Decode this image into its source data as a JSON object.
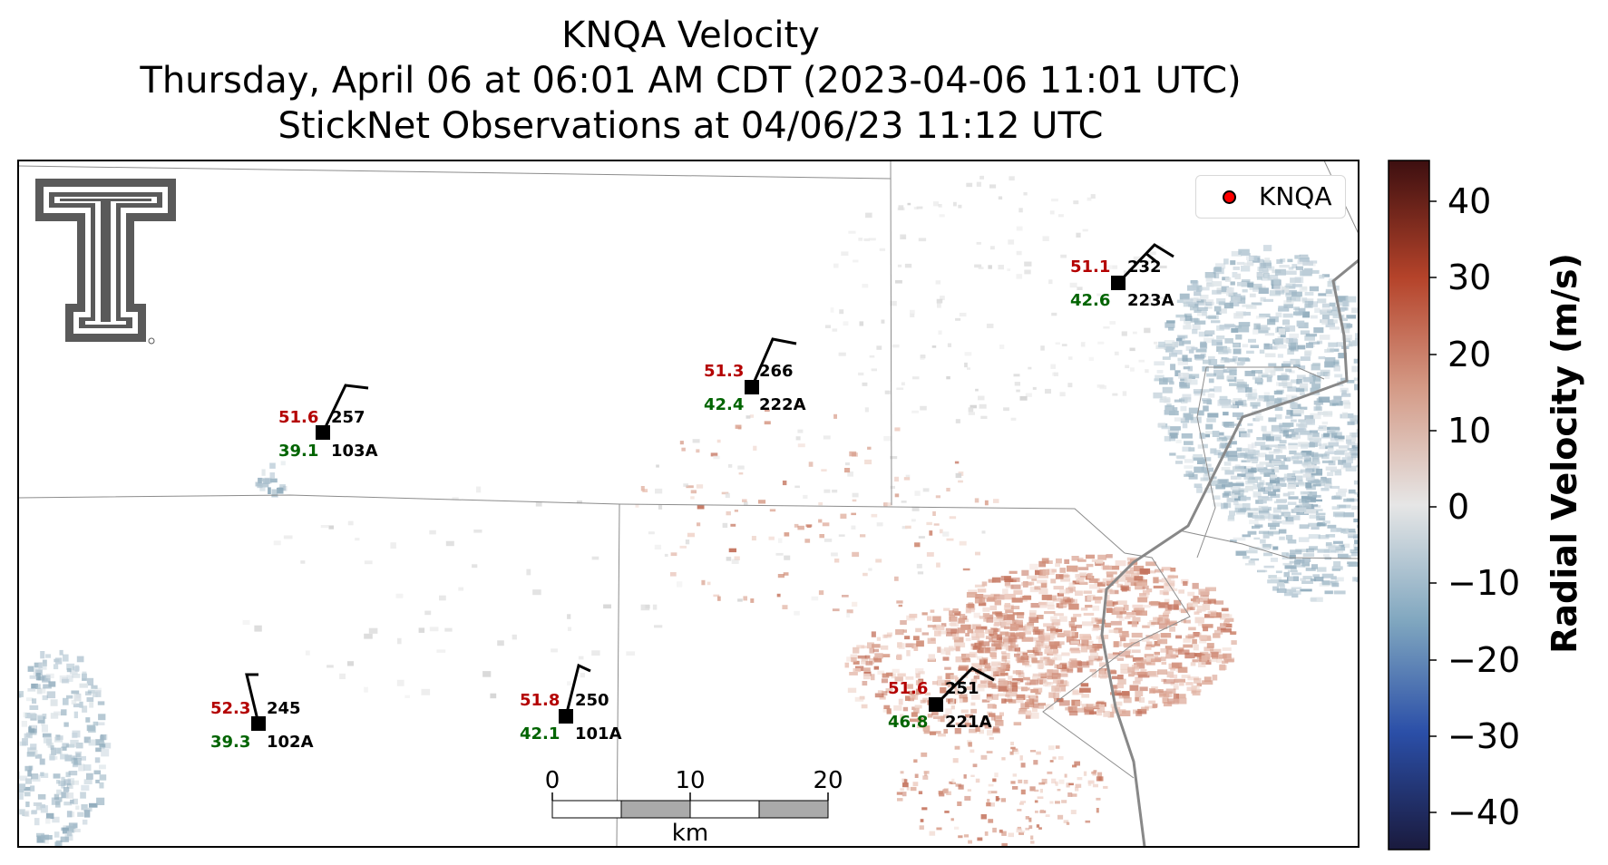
{
  "title": {
    "line1": "KNQA Velocity",
    "line2": "Thursday, April 06 at 06:01 AM CDT (2023-04-06 11:01 UTC)",
    "line3": "StickNet Observations at 04/06/23 11:12 UTC"
  },
  "legend": {
    "label": "KNQA",
    "marker_color": "#ff0000"
  },
  "colorbar": {
    "label": "Radial Velocity (m/s)",
    "ticks": [
      "40",
      "30",
      "20",
      "10",
      "0",
      "−10",
      "−20",
      "−30",
      "−40"
    ],
    "range": [
      -45,
      45
    ],
    "colors": [
      "#1a1a3d",
      "#2b4fa8",
      "#7fa6bf",
      "#e6e6e6",
      "#d49a86",
      "#b5432a",
      "#3d0f10"
    ]
  },
  "scale_bar": {
    "ticks": [
      "0",
      "10",
      "20"
    ],
    "unit": "km"
  },
  "logo": {
    "name": "texas-tech-double-t-logo",
    "text": "T"
  },
  "stations": [
    {
      "id": "103A",
      "temp": "51.6",
      "dir": "257",
      "dew": "39.1"
    },
    {
      "id": "222A",
      "temp": "51.3",
      "dir": "266",
      "dew": "42.4"
    },
    {
      "id": "223A",
      "temp": "51.1",
      "dir": "232",
      "dew": "42.6"
    },
    {
      "id": "102A",
      "temp": "52.3",
      "dir": "245",
      "dew": "39.3"
    },
    {
      "id": "101A",
      "temp": "51.8",
      "dir": "250",
      "dew": "42.1"
    },
    {
      "id": "221A",
      "temp": "51.6",
      "dir": "251",
      "dew": "46.8"
    }
  ]
}
